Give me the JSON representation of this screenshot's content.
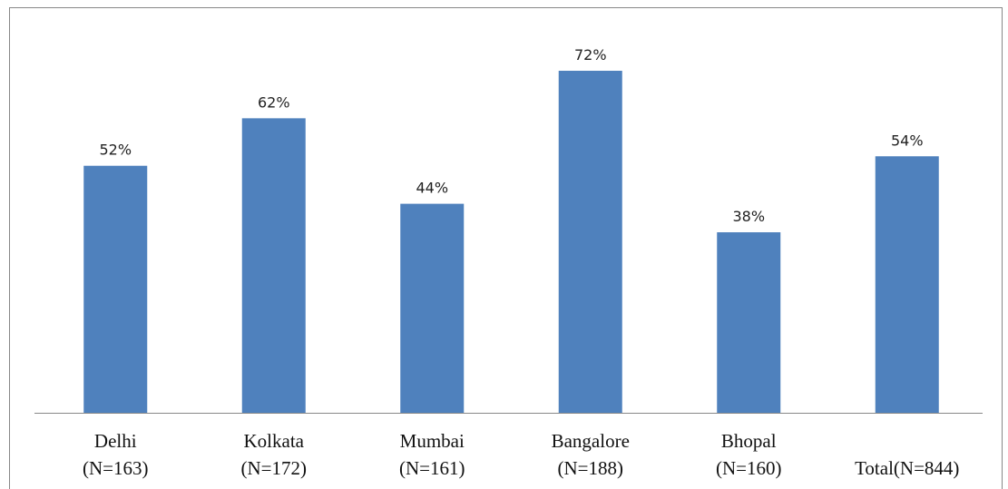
{
  "chart_data": {
    "type": "bar",
    "categories": [
      "Delhi\n(N=163)",
      "Kolkata\n(N=172)",
      "Mumbai\n(N=161)",
      "Bangalore\n(N=188)",
      "Bhopal\n(N=160)",
      "Total(N=844)"
    ],
    "values": [
      52,
      62,
      44,
      72,
      38,
      54
    ],
    "value_labels": [
      "52%",
      "62%",
      "44%",
      "72%",
      "38%",
      "54%"
    ],
    "color": "#4f81bd"
  }
}
